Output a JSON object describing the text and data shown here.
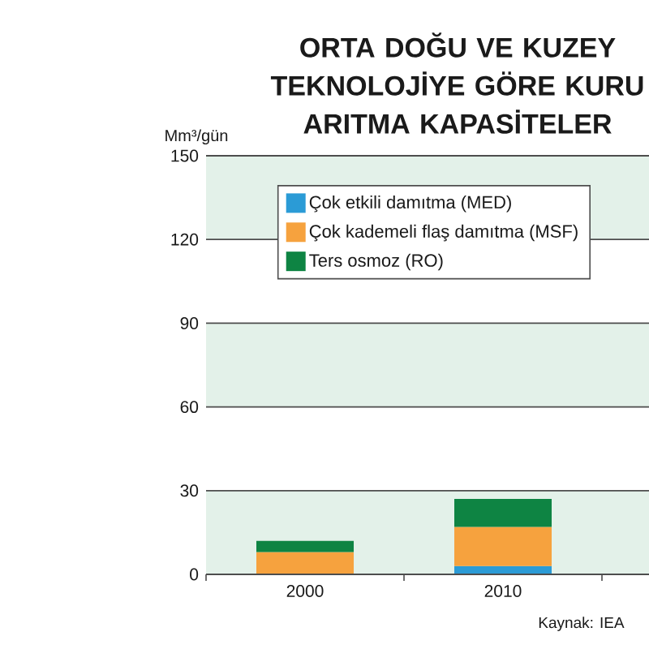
{
  "chart_data": {
    "type": "bar",
    "stacked": true,
    "title": "ORTA DOĞU VE KUZEY TEKNOLOJİYE GÖRE KURU ARITMA KAPASİTELER",
    "ylabel": "Mm³/gün",
    "categories": [
      "2000",
      "2010"
    ],
    "series": [
      {
        "name": "Çok etkili damıtma (MED)",
        "color": "#2b9bd6",
        "values": [
          null,
          3
        ]
      },
      {
        "name": "Çok kademeli flaş damıtma (MSF)",
        "color": "#f6a23e",
        "values": [
          8,
          14
        ]
      },
      {
        "name": "Ters osmoz (RO)",
        "color": "#0e8443",
        "values": [
          4,
          10
        ]
      }
    ],
    "ylim": [
      0,
      150
    ],
    "yticks": [
      0,
      30,
      60,
      90,
      120,
      150
    ],
    "grid": "y",
    "legend": "top",
    "bands": [
      {
        "axis": "y",
        "from": 0,
        "to": 30,
        "color": "#e3f1e9"
      },
      {
        "axis": "y",
        "from": 60,
        "to": 90,
        "color": "#e3f1e9"
      },
      {
        "axis": "y",
        "from": 120,
        "to": 150,
        "color": "#e3f1e9"
      }
    ],
    "annotations": [
      "Kaynak: IEA"
    ]
  }
}
